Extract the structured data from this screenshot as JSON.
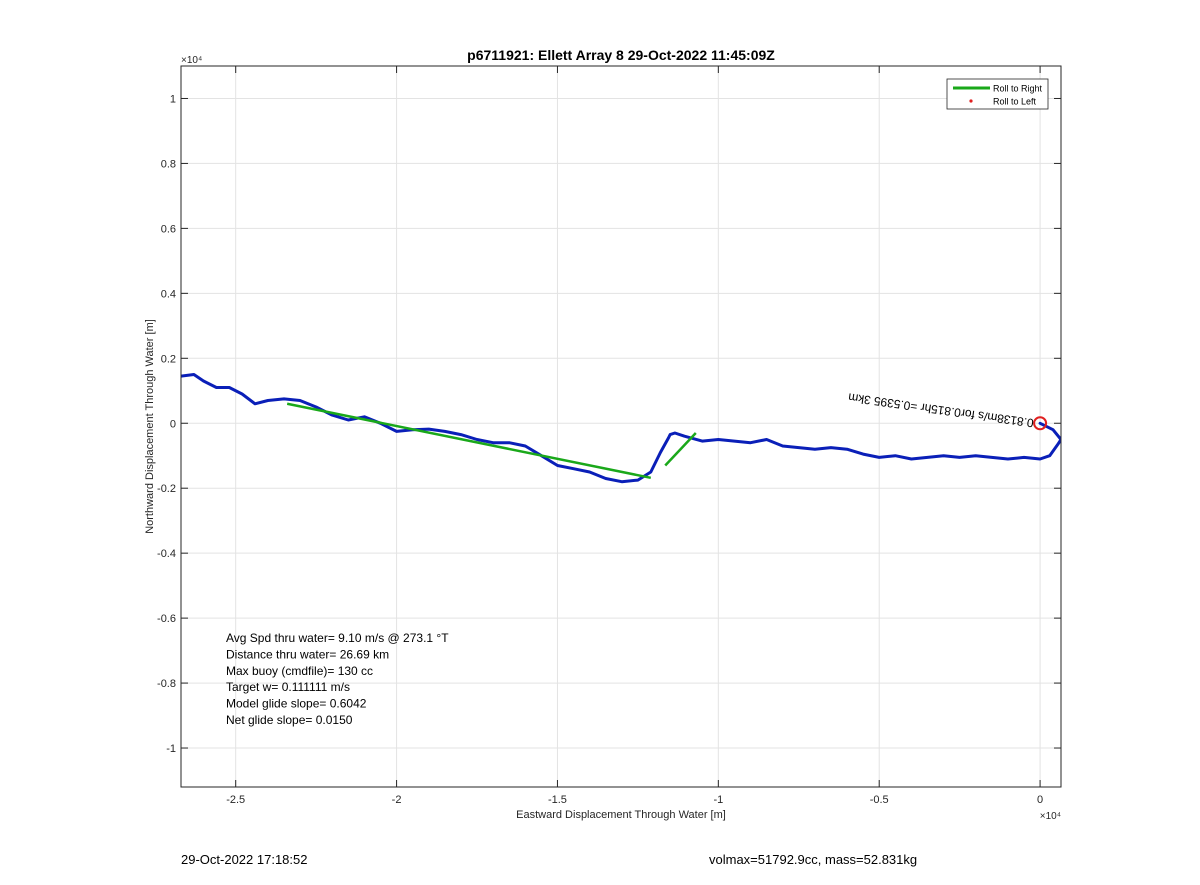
{
  "chart_data": {
    "type": "line",
    "title": "p6711921: Ellett Array 8 29-Oct-2022 11:45:09Z",
    "xlabel": "Eastward Displacement Through Water [m]",
    "ylabel": "Northward Displacement Through Water [m]",
    "x_exponent": "×10⁴",
    "y_exponent": "×10⁴",
    "xlim": [
      -26700,
      650
    ],
    "ylim": [
      -11200,
      11000
    ],
    "xticks": [
      -25000,
      -20000,
      -15000,
      -10000,
      -5000,
      0
    ],
    "xtick_labels": [
      "-2.5",
      "-2",
      "-1.5",
      "-1",
      "-0.5",
      "0"
    ],
    "yticks": [
      -10000,
      -8000,
      -6000,
      -4000,
      -2000,
      0,
      2000,
      4000,
      6000,
      8000,
      10000
    ],
    "ytick_labels": [
      "-1",
      "-0.8",
      "-0.6",
      "-0.4",
      "-0.2",
      "0",
      "0.2",
      "0.4",
      "0.6",
      "0.8",
      "1"
    ],
    "grid": true,
    "legend": {
      "position": "top-right",
      "entries": [
        {
          "label": "Roll to Right",
          "color": "#1aa81a",
          "style": "line"
        },
        {
          "label": "Roll to Left",
          "color": "#e02020",
          "style": "dot"
        }
      ]
    },
    "series": [
      {
        "style": "track",
        "color": "#0a1fb8",
        "x": [
          -26700,
          -26300,
          -26000,
          -25600,
          -25200,
          -24800,
          -24400,
          -24000,
          -23500,
          -23000,
          -22500,
          -22000,
          -21500,
          -21000,
          -20500,
          -20000,
          -19500,
          -19000,
          -18500,
          -18000,
          -17500,
          -17000,
          -16500,
          -16000,
          -15500,
          -15000,
          -14500,
          -14000,
          -13500,
          -13000,
          -12500,
          -12100,
          -11800,
          -11550,
          -11500,
          -11350,
          -11050,
          -10500,
          -10000,
          -9500,
          -9000,
          -8500,
          -8000,
          -7500,
          -7000,
          -6500,
          -6000,
          -5500,
          -5000,
          -4500,
          -4000,
          -3500,
          -3000,
          -2500,
          -2000,
          -1500,
          -1000,
          -500,
          0,
          300,
          550,
          650,
          400,
          0
        ],
        "y": [
          1450,
          1500,
          1300,
          1100,
          1100,
          900,
          600,
          700,
          750,
          700,
          500,
          250,
          100,
          200,
          0,
          -250,
          -200,
          -180,
          -250,
          -350,
          -500,
          -600,
          -600,
          -700,
          -1000,
          -1300,
          -1400,
          -1500,
          -1700,
          -1800,
          -1750,
          -1500,
          -900,
          -450,
          -350,
          -300,
          -400,
          -550,
          -500,
          -550,
          -600,
          -500,
          -700,
          -750,
          -800,
          -750,
          -800,
          -950,
          -1050,
          -1000,
          -1100,
          -1050,
          -1000,
          -1050,
          -1000,
          -1050,
          -1100,
          -1050,
          -1100,
          -1000,
          -650,
          -500,
          -200,
          0
        ]
      },
      {
        "name": "Roll to Right",
        "color": "#1aa81a",
        "segments": [
          {
            "x": [
              -23400,
              -12100
            ],
            "y": [
              600,
              -1680
            ]
          },
          {
            "x": [
              -11650,
              -10700
            ],
            "y": [
              -1300,
              -300
            ]
          }
        ]
      },
      {
        "name": "Roll to Left",
        "color": "#e02020",
        "marker": "circle",
        "x": [
          0
        ],
        "y": [
          0
        ]
      }
    ],
    "annotations": {
      "track_label": "0.8138m/s for0.815hr =0.5395 3km",
      "stats": [
        "Avg Spd thru water=  9.10 m/s @ 273.1 °T",
        "Distance thru water= 26.69 km",
        "Max buoy (cmdfile)= 130 cc",
        "Target w= 0.111111 m/s",
        "Model glide slope= 0.6042",
        "Net glide slope= 0.0150"
      ]
    }
  },
  "footer": {
    "timestamp": "29-Oct-2022 17:18:52",
    "vol_mass": "volmax=51792.9cc, mass=52.831kg"
  }
}
